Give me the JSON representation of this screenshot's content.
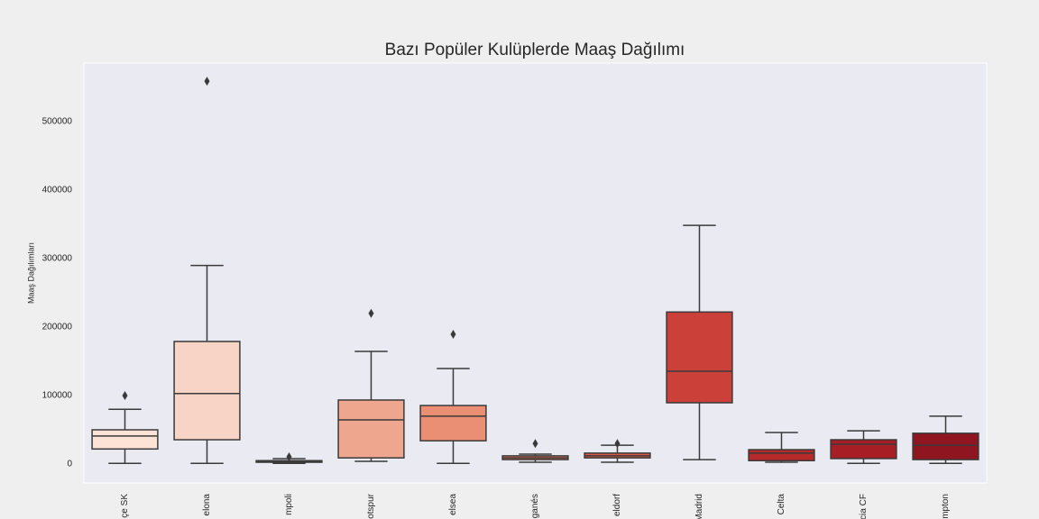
{
  "chart_data": {
    "type": "box",
    "title": "Bazı Popüler Kulüplerde Maaş Dağılımı",
    "y_label": "Maaş Dağılımları",
    "categories": [
      "çe SK",
      "elona",
      "mpoli",
      "otspur",
      "elsea",
      "ganés",
      "eldorf",
      "Madrid",
      "Celta",
      "cia CF",
      "mpton"
    ],
    "boxes": [
      {
        "low": 1000,
        "q1": 22000,
        "median": 41000,
        "q3": 50000,
        "high": 80000,
        "outliers": [
          100000
        ],
        "color": "#fce3d6"
      },
      {
        "low": 1000,
        "q1": 35500,
        "median": 103000,
        "q3": 179000,
        "high": 290000,
        "outliers": [
          559000
        ],
        "color": "#f7d4c6"
      },
      {
        "low": 1000,
        "q1": 2600,
        "median": 4000,
        "q3": 5000,
        "high": 8000,
        "outliers": [
          10500
        ],
        "color": "#f5bda5"
      },
      {
        "low": 4000,
        "q1": 9000,
        "median": 64500,
        "q3": 93500,
        "high": 164500,
        "outliers": [
          220000
        ],
        "color": "#eea68e"
      },
      {
        "low": 1000,
        "q1": 34000,
        "median": 70000,
        "q3": 85500,
        "high": 139500,
        "outliers": [
          189500
        ],
        "color": "#eb8f74"
      },
      {
        "low": 2600,
        "q1": 6500,
        "median": 9000,
        "q3": 12000,
        "high": 14500,
        "outliers": [
          30000
        ],
        "color": "#e8735a"
      },
      {
        "low": 2600,
        "q1": 9000,
        "median": 12000,
        "q3": 16000,
        "high": 27500,
        "outliers": [
          30000
        ],
        "color": "#dc5a45"
      },
      {
        "low": 6500,
        "q1": 89500,
        "median": 135500,
        "q3": 222000,
        "high": 348500,
        "outliers": [],
        "color": "#cb4139"
      },
      {
        "low": 2600,
        "q1": 5000,
        "median": 16000,
        "q3": 21000,
        "high": 46000,
        "outliers": [],
        "color": "#b72a2c"
      },
      {
        "low": 1000,
        "q1": 8000,
        "median": 29000,
        "q3": 35500,
        "high": 48500,
        "outliers": [],
        "color": "#a81e25"
      },
      {
        "low": 1000,
        "q1": 6500,
        "median": 27500,
        "q3": 45000,
        "high": 70000,
        "outliers": [],
        "color": "#8f1620"
      }
    ],
    "ylim": [
      -27600,
      585500
    ],
    "yticks": [
      0,
      100000,
      200000,
      300000,
      400000,
      500000
    ],
    "grid": false
  }
}
